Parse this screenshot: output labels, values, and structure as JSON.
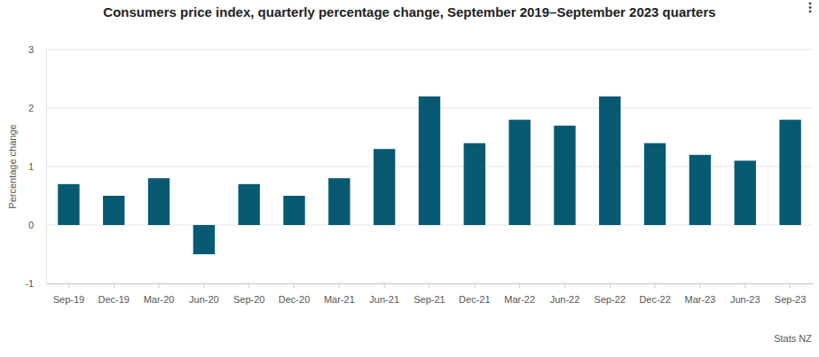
{
  "chart_data": {
    "type": "bar",
    "title": "Consumers price index, quarterly percentage change, September 2019–September 2023 quarters",
    "y_label": "Percentage change",
    "source": "Stats NZ",
    "categories": [
      "Sep-19",
      "Dec-19",
      "Mar-20",
      "Jun-20",
      "Sep-20",
      "Dec-20",
      "Mar-21",
      "Jun-21",
      "Sep-21",
      "Dec-21",
      "Mar-22",
      "Jun-22",
      "Sep-22",
      "Dec-22",
      "Mar-23",
      "Jun-23",
      "Sep-23"
    ],
    "values": [
      0.7,
      0.5,
      0.8,
      -0.5,
      0.7,
      0.5,
      0.8,
      1.3,
      2.2,
      1.4,
      1.8,
      1.7,
      2.2,
      1.4,
      1.2,
      1.1,
      1.8
    ],
    "color": "#085a73",
    "ylim": [
      -1,
      3
    ],
    "yticks": [
      -1,
      0,
      1,
      2,
      3
    ],
    "grid": true
  }
}
